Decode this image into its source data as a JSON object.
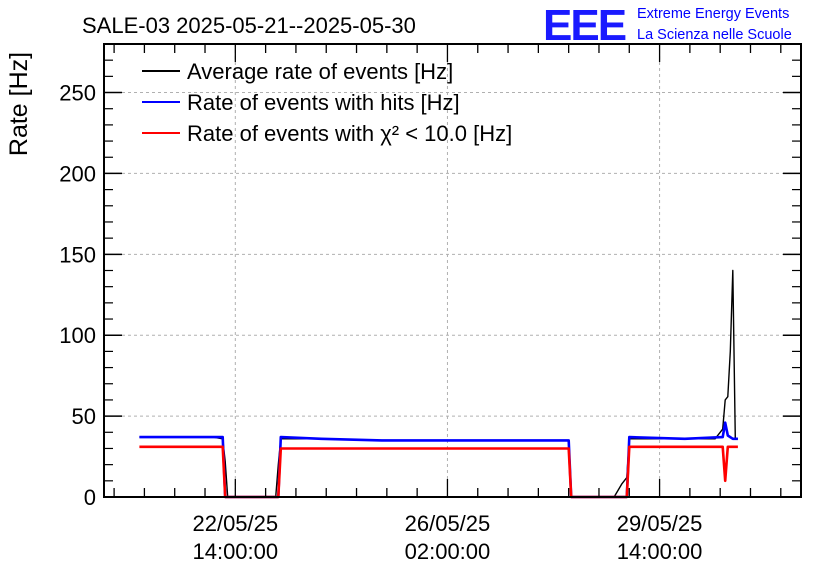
{
  "header": {
    "title": "SALE-03 2025-05-21--2025-05-30",
    "logo_mark": "EEE",
    "logo_line1": "Extreme Energy Events",
    "logo_line2": "La Scienza nelle Scuole"
  },
  "chart_data": {
    "type": "line",
    "title": "SALE-03 2025-05-21--2025-05-30",
    "xlabel": "",
    "ylabel": "Rate [Hz]",
    "ylim": [
      0,
      280
    ],
    "xlim": [
      "2025-05-20T10:00:00",
      "2025-05-31T22:00:00"
    ],
    "grid": true,
    "legend_position": "top-left",
    "y_ticks": [
      0,
      50,
      100,
      150,
      200,
      250
    ],
    "x_ticks": [
      {
        "x": "2025-05-22T14:00:00",
        "label_date": "22/05/25",
        "label_time": "14:00:00"
      },
      {
        "x": "2025-05-26T02:00:00",
        "label_date": "26/05/25",
        "label_time": "02:00:00"
      },
      {
        "x": "2025-05-29T14:00:00",
        "label_date": "29/05/25",
        "label_time": "14:00:00"
      }
    ],
    "series": [
      {
        "name": "Average rate of events [Hz]",
        "color": "#000000",
        "points": [
          [
            "2025-05-21T00:00:00",
            37
          ],
          [
            "2025-05-22T00:00:00",
            37
          ],
          [
            "2025-05-22T05:00:00",
            37
          ],
          [
            "2025-05-22T09:00:00",
            36
          ],
          [
            "2025-05-22T10:00:00",
            22
          ],
          [
            "2025-05-22T11:00:00",
            0
          ],
          [
            "2025-05-23T06:00:00",
            0
          ],
          [
            "2025-05-23T07:00:00",
            20
          ],
          [
            "2025-05-23T08:00:00",
            36
          ],
          [
            "2025-05-24T00:00:00",
            36
          ],
          [
            "2025-05-25T00:00:00",
            35
          ],
          [
            "2025-05-26T00:00:00",
            35
          ],
          [
            "2025-05-27T00:00:00",
            35
          ],
          [
            "2025-05-28T00:00:00",
            35
          ],
          [
            "2025-05-28T02:00:00",
            35
          ],
          [
            "2025-05-28T03:00:00",
            0
          ],
          [
            "2025-05-28T20:00:00",
            0
          ],
          [
            "2025-05-28T23:00:00",
            8
          ],
          [
            "2025-05-29T01:00:00",
            12
          ],
          [
            "2025-05-29T02:00:00",
            36
          ],
          [
            "2025-05-30T00:00:00",
            36
          ],
          [
            "2025-05-30T12:00:00",
            36
          ],
          [
            "2025-05-30T15:00:00",
            42
          ],
          [
            "2025-05-30T16:00:00",
            60
          ],
          [
            "2025-05-30T17:00:00",
            62
          ],
          [
            "2025-05-30T18:00:00",
            90
          ],
          [
            "2025-05-30T19:00:00",
            140
          ],
          [
            "2025-05-30T20:00:00",
            36
          ],
          [
            "2025-05-30T21:00:00",
            36
          ]
        ]
      },
      {
        "name": "Rate of events with hits [Hz]",
        "color": "#0000ff",
        "points": [
          [
            "2025-05-21T00:00:00",
            37
          ],
          [
            "2025-05-22T00:00:00",
            37
          ],
          [
            "2025-05-22T09:00:00",
            37
          ],
          [
            "2025-05-22T10:00:00",
            0
          ],
          [
            "2025-05-23T07:00:00",
            0
          ],
          [
            "2025-05-23T08:00:00",
            37
          ],
          [
            "2025-05-24T00:00:00",
            36
          ],
          [
            "2025-05-25T00:00:00",
            35
          ],
          [
            "2025-05-26T00:00:00",
            35
          ],
          [
            "2025-05-27T00:00:00",
            35
          ],
          [
            "2025-05-28T00:00:00",
            35
          ],
          [
            "2025-05-28T02:00:00",
            35
          ],
          [
            "2025-05-28T03:00:00",
            0
          ],
          [
            "2025-05-29T01:00:00",
            0
          ],
          [
            "2025-05-29T02:00:00",
            37
          ],
          [
            "2025-05-30T00:00:00",
            36
          ],
          [
            "2025-05-30T15:00:00",
            37
          ],
          [
            "2025-05-30T16:00:00",
            46
          ],
          [
            "2025-05-30T17:00:00",
            38
          ],
          [
            "2025-05-30T19:00:00",
            36
          ],
          [
            "2025-05-30T21:00:00",
            36
          ]
        ]
      },
      {
        "name": "Rate of events with χ² < 10.0 [Hz]",
        "color": "#ff0000",
        "points": [
          [
            "2025-05-21T00:00:00",
            31
          ],
          [
            "2025-05-22T00:00:00",
            31
          ],
          [
            "2025-05-22T09:00:00",
            31
          ],
          [
            "2025-05-22T10:00:00",
            0
          ],
          [
            "2025-05-23T07:00:00",
            0
          ],
          [
            "2025-05-23T08:00:00",
            30
          ],
          [
            "2025-05-24T00:00:00",
            30
          ],
          [
            "2025-05-25T00:00:00",
            30
          ],
          [
            "2025-05-26T00:00:00",
            30
          ],
          [
            "2025-05-27T00:00:00",
            30
          ],
          [
            "2025-05-28T00:00:00",
            30
          ],
          [
            "2025-05-28T02:00:00",
            30
          ],
          [
            "2025-05-28T03:00:00",
            0
          ],
          [
            "2025-05-29T01:00:00",
            0
          ],
          [
            "2025-05-29T02:00:00",
            31
          ],
          [
            "2025-05-30T00:00:00",
            31
          ],
          [
            "2025-05-30T15:00:00",
            31
          ],
          [
            "2025-05-30T16:00:00",
            10
          ],
          [
            "2025-05-30T17:00:00",
            31
          ],
          [
            "2025-05-30T21:00:00",
            31
          ]
        ]
      }
    ]
  }
}
